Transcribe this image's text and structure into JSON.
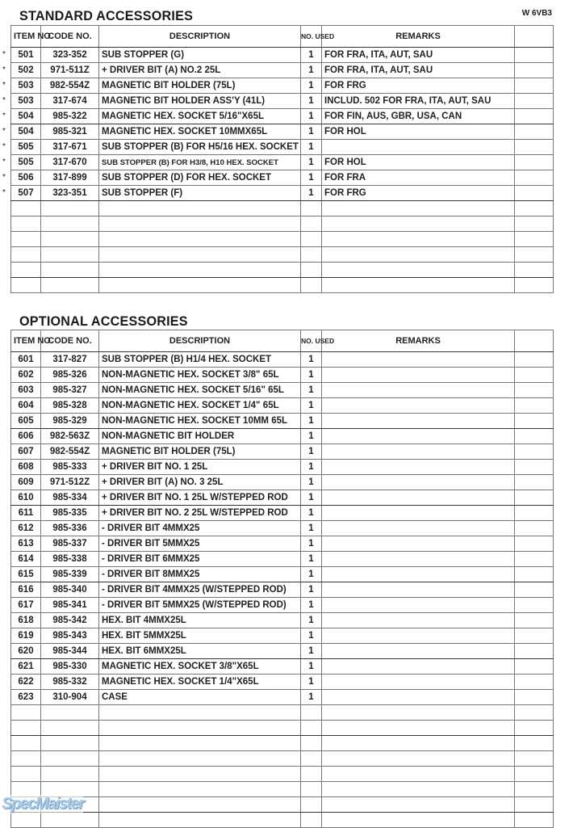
{
  "document_id": "W 6VB3",
  "headers": {
    "item_no": "ITEM NO.",
    "code_no": "CODE NO.",
    "description": "DESCRIPTION",
    "no_used": "NO. USED",
    "remarks": "REMARKS"
  },
  "standard": {
    "title": "STANDARD  ACCESSORIES",
    "rows": [
      {
        "mark": "*",
        "item": "501",
        "code": "323-352",
        "desc": "SUB STOPPER (G)",
        "used": "1",
        "remarks": "FOR FRA, ITA, AUT, SAU"
      },
      {
        "mark": "*",
        "item": "502",
        "code": "971-511Z",
        "desc": "+ DRIVER BIT (A) NO.2 25L",
        "used": "1",
        "remarks": "FOR FRA, ITA, AUT, SAU"
      },
      {
        "mark": "*",
        "item": "503",
        "code": "982-554Z",
        "desc": "MAGNETIC BIT HOLDER (75L)",
        "used": "1",
        "remarks": "FOR FRG"
      },
      {
        "mark": "*",
        "item": "503",
        "code": "317-674",
        "desc": "MAGNETIC BIT HOLDER ASS'Y (41L)",
        "used": "1",
        "remarks": "INCLUD. 502 FOR FRA, ITA, AUT, SAU"
      },
      {
        "mark": "*",
        "item": "504",
        "code": "985-322",
        "desc": "MAGNETIC HEX. SOCKET 5/16\"X65L",
        "used": "1",
        "remarks": "FOR FIN, AUS, GBR, USA, CAN"
      },
      {
        "mark": "*",
        "item": "504",
        "code": "985-321",
        "desc": "MAGNETIC HEX. SOCKET 10MMX65L",
        "used": "1",
        "remarks": "FOR HOL"
      },
      {
        "mark": "*",
        "item": "505",
        "code": "317-671",
        "desc": "SUB STOPPER (B) FOR H5/16 HEX. SOCKET",
        "used": "1",
        "remarks": ""
      },
      {
        "mark": "*",
        "item": "505",
        "code": "317-670",
        "desc": "SUB STOPPER (B) FOR H3/8, H10 HEX. SOCKET",
        "used": "1",
        "remarks": "FOR HOL"
      },
      {
        "mark": "*",
        "item": "506",
        "code": "317-899",
        "desc": "SUB STOPPER (D) FOR HEX. SOCKET",
        "used": "1",
        "remarks": "FOR FRA"
      },
      {
        "mark": "*",
        "item": "507",
        "code": "323-351",
        "desc": "SUB STOPPER (F)",
        "used": "1",
        "remarks": "FOR FRG"
      }
    ]
  },
  "optional": {
    "title": "OPTIONAL  ACCESSORIES",
    "rows": [
      {
        "item": "601",
        "code": "317-827",
        "desc": "SUB STOPPER (B) H1/4 HEX. SOCKET",
        "used": "1"
      },
      {
        "item": "602",
        "code": "985-326",
        "desc": "NON-MAGNETIC HEX. SOCKET 3/8\" 65L",
        "used": "1"
      },
      {
        "item": "603",
        "code": "985-327",
        "desc": "NON-MAGNETIC HEX. SOCKET 5/16\" 65L",
        "used": "1"
      },
      {
        "item": "604",
        "code": "985-328",
        "desc": "NON-MAGNETIC HEX. SOCKET 1/4\" 65L",
        "used": "1"
      },
      {
        "item": "605",
        "code": "985-329",
        "desc": "NON-MAGNETIC HEX. SOCKET 10MM 65L",
        "used": "1"
      },
      {
        "item": "606",
        "code": "982-563Z",
        "desc": "NON-MAGNETIC BIT HOLDER",
        "used": "1"
      },
      {
        "item": "607",
        "code": "982-554Z",
        "desc": "MAGNETIC BIT HOLDER (75L)",
        "used": "1"
      },
      {
        "item": "608",
        "code": "985-333",
        "desc": "+ DRIVER BIT NO. 1 25L",
        "used": "1"
      },
      {
        "item": "609",
        "code": "971-512Z",
        "desc": "+ DRIVER BIT (A) NO. 3 25L",
        "used": "1"
      },
      {
        "item": "610",
        "code": "985-334",
        "desc": "+ DRIVER BIT NO. 1 25L W/STEPPED ROD",
        "used": "1"
      },
      {
        "item": "611",
        "code": "985-335",
        "desc": "+ DRIVER BIT NO. 2 25L W/STEPPED ROD",
        "used": "1"
      },
      {
        "item": "612",
        "code": "985-336",
        "desc": "- DRIVER BIT 4MMX25",
        "used": "1"
      },
      {
        "item": "613",
        "code": "985-337",
        "desc": "- DRIVER BIT 5MMX25",
        "used": "1"
      },
      {
        "item": "614",
        "code": "985-338",
        "desc": "- DRIVER BIT 6MMX25",
        "used": "1"
      },
      {
        "item": "615",
        "code": "985-339",
        "desc": "- DRIVER BIT 8MMX25",
        "used": "1"
      },
      {
        "item": "616",
        "code": "985-340",
        "desc": "- DRIVER BIT 4MMX25 (W/STEPPED ROD)",
        "used": "1"
      },
      {
        "item": "617",
        "code": "985-341",
        "desc": "- DRIVER BIT 5MMX25 (W/STEPPED ROD)",
        "used": "1"
      },
      {
        "item": "618",
        "code": "985-342",
        "desc": "HEX. BIT 4MMX25L",
        "used": "1"
      },
      {
        "item": "619",
        "code": "985-343",
        "desc": "HEX. BIT 5MMX25L",
        "used": "1"
      },
      {
        "item": "620",
        "code": "985-344",
        "desc": "HEX. BIT 6MMX25L",
        "used": "1"
      },
      {
        "item": "621",
        "code": "985-330",
        "desc": "MAGNETIC HEX. SOCKET 3/8\"X65L",
        "used": "1"
      },
      {
        "item": "622",
        "code": "985-332",
        "desc": "MAGNETIC HEX. SOCKET 1/4\"X65L",
        "used": "1"
      },
      {
        "item": "623",
        "code": "310-904",
        "desc": "CASE",
        "used": "1"
      }
    ]
  },
  "watermark": "SpecMaister"
}
